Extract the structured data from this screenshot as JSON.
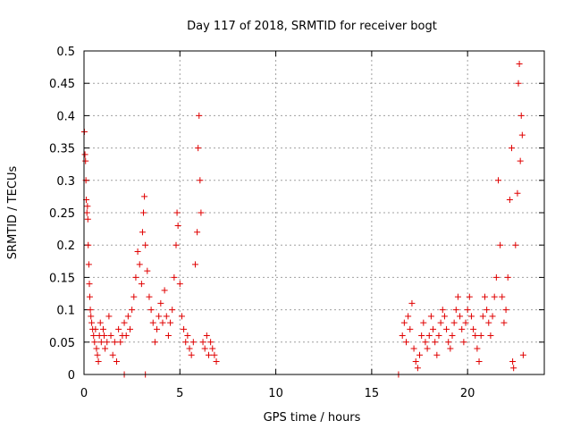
{
  "chart_data": {
    "type": "scatter",
    "title": "Day 117 of 2018, SRMTID for receiver bogt",
    "xlabel": "GPS time / hours",
    "ylabel": "SRMTID / TECUs",
    "xlim": [
      0,
      24
    ],
    "ylim": [
      0,
      0.5
    ],
    "x_ticks": [
      0,
      5,
      10,
      15,
      20
    ],
    "x_tick_labels": [
      "0",
      "5",
      "10",
      "15",
      "20"
    ],
    "y_ticks": [
      0,
      0.05,
      0.1,
      0.15,
      0.2,
      0.25,
      0.3,
      0.35,
      0.4,
      0.45,
      0.5
    ],
    "y_tick_labels": [
      "0",
      "0.05",
      "0.1",
      "0.15",
      "0.2",
      "0.25",
      "0.3",
      "0.35",
      "0.4",
      "0.45",
      "0.5"
    ],
    "grid": true,
    "marker": "+",
    "marker_color": "#e00000",
    "series": [
      {
        "name": "SRMTID",
        "points": [
          [
            0.02,
            0.375
          ],
          [
            0.05,
            0.34
          ],
          [
            0.08,
            0.33
          ],
          [
            0.1,
            0.3
          ],
          [
            0.12,
            0.27
          ],
          [
            0.15,
            0.25
          ],
          [
            0.18,
            0.26
          ],
          [
            0.2,
            0.24
          ],
          [
            0.22,
            0.2
          ],
          [
            0.25,
            0.17
          ],
          [
            0.28,
            0.14
          ],
          [
            0.3,
            0.12
          ],
          [
            0.33,
            0.1
          ],
          [
            0.36,
            0.09
          ],
          [
            0.4,
            0.08
          ],
          [
            0.45,
            0.07
          ],
          [
            0.5,
            0.06
          ],
          [
            0.55,
            0.05
          ],
          [
            0.6,
            0.07
          ],
          [
            0.65,
            0.04
          ],
          [
            0.7,
            0.03
          ],
          [
            0.75,
            0.02
          ],
          [
            0.8,
            0.06
          ],
          [
            0.85,
            0.08
          ],
          [
            0.9,
            0.05
          ],
          [
            1.0,
            0.07
          ],
          [
            1.05,
            0.06
          ],
          [
            1.1,
            0.04
          ],
          [
            1.2,
            0.05
          ],
          [
            1.3,
            0.09
          ],
          [
            1.4,
            0.06
          ],
          [
            1.5,
            0.03
          ],
          [
            1.6,
            0.05
          ],
          [
            1.7,
            0.02
          ],
          [
            1.8,
            0.07
          ],
          [
            1.9,
            0.05
          ],
          [
            2.0,
            0.06
          ],
          [
            2.1,
            0.08
          ],
          [
            2.2,
            0.06
          ],
          [
            2.3,
            0.09
          ],
          [
            2.4,
            0.07
          ],
          [
            2.5,
            0.1
          ],
          [
            2.6,
            0.12
          ],
          [
            2.7,
            0.15
          ],
          [
            2.8,
            0.19
          ],
          [
            2.9,
            0.17
          ],
          [
            3.0,
            0.14
          ],
          [
            3.05,
            0.22
          ],
          [
            3.1,
            0.25
          ],
          [
            3.15,
            0.275
          ],
          [
            3.2,
            0.2
          ],
          [
            3.3,
            0.16
          ],
          [
            3.4,
            0.12
          ],
          [
            3.5,
            0.1
          ],
          [
            3.6,
            0.08
          ],
          [
            3.7,
            0.05
          ],
          [
            3.8,
            0.07
          ],
          [
            3.9,
            0.09
          ],
          [
            4.0,
            0.11
          ],
          [
            4.1,
            0.08
          ],
          [
            4.2,
            0.13
          ],
          [
            4.3,
            0.09
          ],
          [
            4.4,
            0.06
          ],
          [
            4.5,
            0.08
          ],
          [
            4.6,
            0.1
          ],
          [
            4.7,
            0.15
          ],
          [
            4.8,
            0.2
          ],
          [
            4.85,
            0.25
          ],
          [
            4.9,
            0.23
          ],
          [
            5.0,
            0.14
          ],
          [
            5.1,
            0.09
          ],
          [
            5.2,
            0.07
          ],
          [
            5.3,
            0.05
          ],
          [
            5.4,
            0.06
          ],
          [
            5.5,
            0.04
          ],
          [
            5.6,
            0.03
          ],
          [
            5.7,
            0.05
          ],
          [
            5.8,
            0.17
          ],
          [
            5.9,
            0.22
          ],
          [
            5.95,
            0.35
          ],
          [
            6.0,
            0.4
          ],
          [
            6.05,
            0.3
          ],
          [
            6.1,
            0.25
          ],
          [
            6.2,
            0.05
          ],
          [
            6.3,
            0.04
          ],
          [
            6.4,
            0.06
          ],
          [
            6.5,
            0.03
          ],
          [
            6.6,
            0.05
          ],
          [
            6.7,
            0.04
          ],
          [
            6.8,
            0.03
          ],
          [
            6.9,
            0.02
          ],
          [
            2.1,
            0.0
          ],
          [
            3.2,
            0.0
          ],
          [
            16.4,
            0.0
          ],
          [
            16.6,
            0.06
          ],
          [
            16.7,
            0.08
          ],
          [
            16.8,
            0.05
          ],
          [
            16.9,
            0.09
          ],
          [
            17.0,
            0.07
          ],
          [
            17.1,
            0.11
          ],
          [
            17.2,
            0.04
          ],
          [
            17.3,
            0.02
          ],
          [
            17.4,
            0.01
          ],
          [
            17.5,
            0.03
          ],
          [
            17.6,
            0.06
          ],
          [
            17.7,
            0.08
          ],
          [
            17.8,
            0.05
          ],
          [
            17.9,
            0.04
          ],
          [
            18.0,
            0.06
          ],
          [
            18.1,
            0.09
          ],
          [
            18.2,
            0.07
          ],
          [
            18.3,
            0.05
          ],
          [
            18.4,
            0.03
          ],
          [
            18.5,
            0.06
          ],
          [
            18.6,
            0.08
          ],
          [
            18.7,
            0.1
          ],
          [
            18.8,
            0.09
          ],
          [
            18.9,
            0.07
          ],
          [
            19.0,
            0.05
          ],
          [
            19.1,
            0.04
          ],
          [
            19.2,
            0.06
          ],
          [
            19.3,
            0.08
          ],
          [
            19.4,
            0.1
          ],
          [
            19.5,
            0.12
          ],
          [
            19.6,
            0.09
          ],
          [
            19.7,
            0.07
          ],
          [
            19.8,
            0.05
          ],
          [
            19.9,
            0.08
          ],
          [
            20.0,
            0.1
          ],
          [
            20.1,
            0.12
          ],
          [
            20.2,
            0.09
          ],
          [
            20.3,
            0.07
          ],
          [
            20.4,
            0.06
          ],
          [
            20.5,
            0.04
          ],
          [
            20.6,
            0.02
          ],
          [
            20.7,
            0.06
          ],
          [
            20.8,
            0.09
          ],
          [
            20.9,
            0.12
          ],
          [
            21.0,
            0.1
          ],
          [
            21.1,
            0.08
          ],
          [
            21.2,
            0.06
          ],
          [
            21.3,
            0.09
          ],
          [
            21.4,
            0.12
          ],
          [
            21.5,
            0.15
          ],
          [
            21.6,
            0.3
          ],
          [
            21.7,
            0.2
          ],
          [
            21.8,
            0.12
          ],
          [
            21.9,
            0.08
          ],
          [
            22.0,
            0.1
          ],
          [
            22.1,
            0.15
          ],
          [
            22.2,
            0.27
          ],
          [
            22.3,
            0.35
          ],
          [
            22.35,
            0.02
          ],
          [
            22.4,
            0.01
          ],
          [
            22.5,
            0.2
          ],
          [
            22.6,
            0.28
          ],
          [
            22.65,
            0.45
          ],
          [
            22.7,
            0.48
          ],
          [
            22.75,
            0.33
          ],
          [
            22.8,
            0.4
          ],
          [
            22.85,
            0.37
          ],
          [
            22.9,
            0.03
          ]
        ]
      }
    ]
  }
}
